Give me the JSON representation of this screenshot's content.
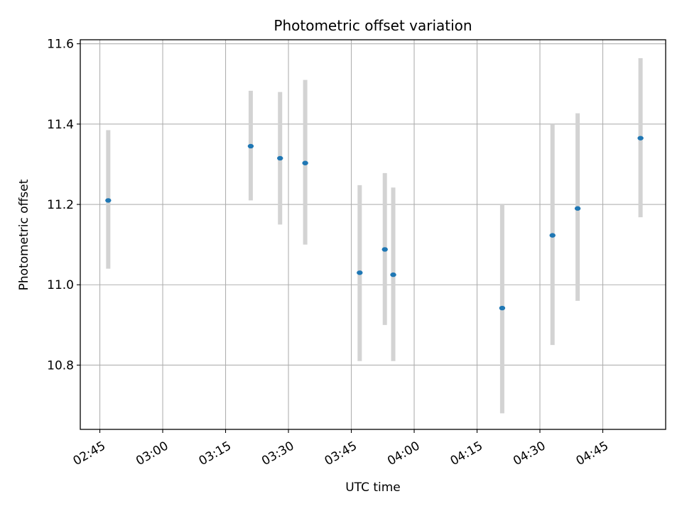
{
  "chart_data": {
    "type": "scatter",
    "title": "Photometric offset variation",
    "xlabel": "UTC time",
    "ylabel": "Photometric offset",
    "x_ticks": [
      "02:45",
      "03:00",
      "03:15",
      "03:30",
      "03:45",
      "04:00",
      "04:15",
      "04:30",
      "04:45"
    ],
    "y_ticks": [
      "10.8",
      "11.0",
      "11.2",
      "11.4",
      "11.6"
    ],
    "xlim": [
      "02:40:20",
      "05:00:00"
    ],
    "ylim": [
      10.64,
      11.61
    ],
    "grid": true,
    "marker_color": "#1f77b4",
    "errorbar_color": "#d3d3d3",
    "series": [
      {
        "points": [
          {
            "x": "02:47",
            "y": 11.21,
            "low": 11.04,
            "high": 11.385
          },
          {
            "x": "03:21",
            "y": 11.345,
            "low": 11.21,
            "high": 11.483
          },
          {
            "x": "03:28",
            "y": 11.315,
            "low": 11.15,
            "high": 11.48
          },
          {
            "x": "03:34",
            "y": 11.303,
            "low": 11.1,
            "high": 11.51
          },
          {
            "x": "03:47",
            "y": 11.03,
            "low": 10.81,
            "high": 11.248
          },
          {
            "x": "03:53",
            "y": 11.088,
            "low": 10.9,
            "high": 11.278
          },
          {
            "x": "03:55",
            "y": 11.025,
            "low": 10.81,
            "high": 11.242
          },
          {
            "x": "04:21",
            "y": 10.942,
            "low": 10.68,
            "high": 11.2
          },
          {
            "x": "04:33",
            "y": 11.123,
            "low": 10.85,
            "high": 11.4
          },
          {
            "x": "04:39",
            "y": 11.19,
            "low": 10.96,
            "high": 11.427
          },
          {
            "x": "04:54",
            "y": 11.365,
            "low": 11.168,
            "high": 11.564
          }
        ]
      }
    ]
  }
}
